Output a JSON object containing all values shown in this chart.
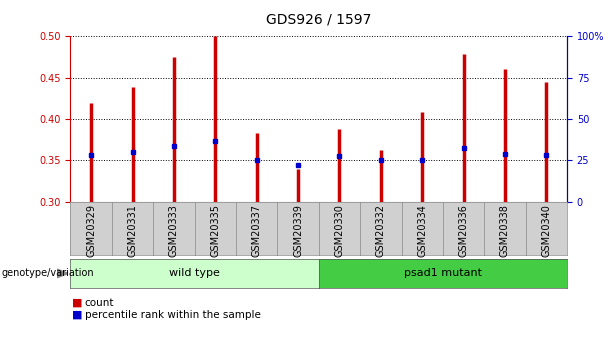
{
  "title": "GDS926 / 1597",
  "samples": [
    "GSM20329",
    "GSM20331",
    "GSM20333",
    "GSM20335",
    "GSM20337",
    "GSM20339",
    "GSM20330",
    "GSM20332",
    "GSM20334",
    "GSM20336",
    "GSM20338",
    "GSM20340"
  ],
  "bar_tops": [
    0.419,
    0.439,
    0.475,
    0.5,
    0.383,
    0.34,
    0.388,
    0.362,
    0.408,
    0.478,
    0.461,
    0.445
  ],
  "bar_base": 0.3,
  "blue_dots": [
    0.357,
    0.36,
    0.368,
    0.374,
    0.351,
    0.344,
    0.355,
    0.351,
    0.351,
    0.365,
    0.358,
    0.357
  ],
  "ylim": [
    0.3,
    0.5
  ],
  "yticks_left": [
    0.3,
    0.35,
    0.4,
    0.45,
    0.5
  ],
  "yticks_right": [
    0,
    25,
    50,
    75,
    100
  ],
  "ytick_right_labels": [
    "0",
    "25",
    "50",
    "75",
    "100%"
  ],
  "bar_color": "#cc0000",
  "dot_color": "#0000cc",
  "plot_bg": "#ffffff",
  "group1_label": "wild type",
  "group2_label": "psad1 mutant",
  "group1_color": "#ccffcc",
  "group2_color": "#44cc44",
  "genotype_label": "genotype/variation",
  "legend_count": "count",
  "legend_percentile": "percentile rank within the sample",
  "title_fontsize": 10,
  "tick_fontsize": 7,
  "group_label_fontsize": 8,
  "legend_fontsize": 7.5,
  "bar_linewidth": 2.5,
  "n_group1": 6,
  "n_group2": 6
}
